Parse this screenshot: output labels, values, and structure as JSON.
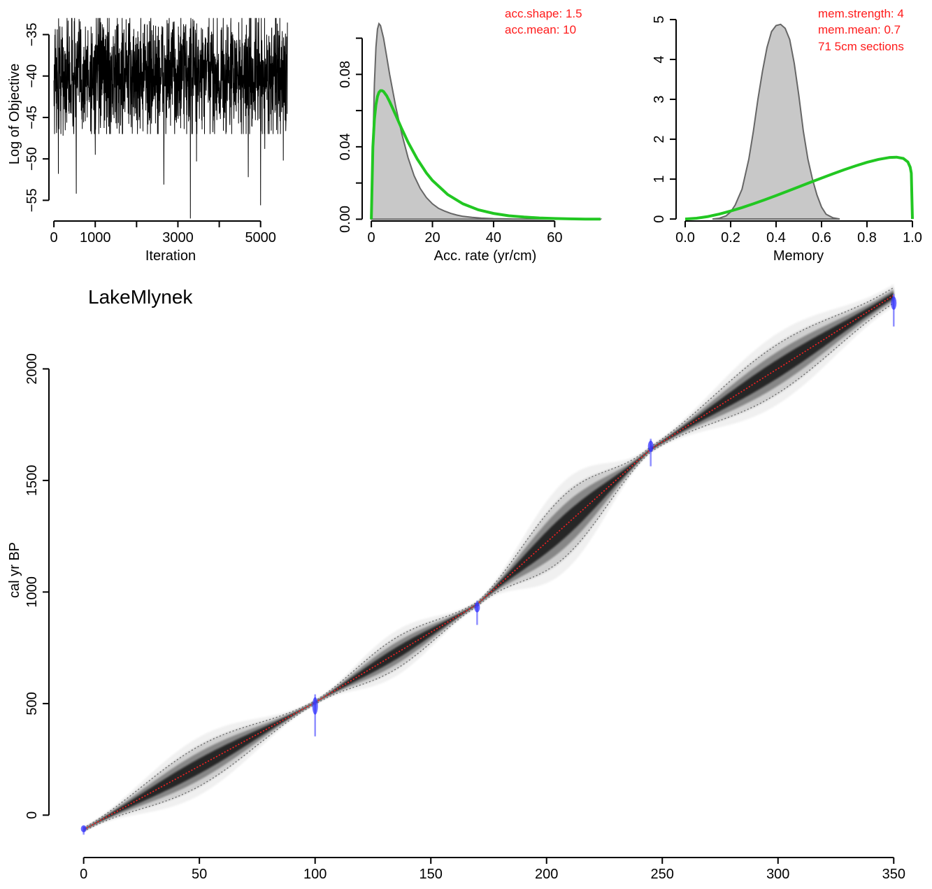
{
  "chart_data": [
    {
      "type": "line",
      "name": "mcmc-trace",
      "xlabel": "Iteration",
      "ylabel": "Log of Objective",
      "xlim": [
        -120,
        5800
      ],
      "ylim": [
        -57.5,
        -31.5
      ],
      "xticks": [
        0,
        1000,
        2000,
        3000,
        4000,
        5000
      ],
      "xtick_labels": [
        "0",
        "1000",
        "",
        "3000",
        "",
        "5000"
      ],
      "yticks": [
        -55,
        -50,
        -45,
        -40,
        -35
      ],
      "ytick_labels": [
        "−55",
        "−50",
        "−45",
        "−40",
        "−35"
      ],
      "series": [
        {
          "x_range": [
            0,
            5650
          ],
          "typical_range": [
            -47,
            -33
          ],
          "mean": -40,
          "spikes": [
            [
              110,
              -51.8
            ],
            [
              220,
              -47.2
            ],
            [
              540,
              -54.2
            ],
            [
              1000,
              -49.5
            ],
            [
              2660,
              -53.1
            ],
            [
              3300,
              -57.2
            ],
            [
              3450,
              -50.3
            ],
            [
              4700,
              -52.2
            ],
            [
              5000,
              -55.6
            ],
            [
              5100,
              -48.8
            ],
            [
              5550,
              -50.2
            ]
          ]
        }
      ]
    },
    {
      "type": "area",
      "name": "accumulation-rate",
      "xlabel": "Acc. rate (yr/cm)",
      "ylabel": "",
      "xlim": [
        -3.0,
        78.0
      ],
      "ylim": [
        -0.001,
        0.118
      ],
      "xticks": [
        0,
        20,
        40,
        60
      ],
      "xtick_labels": [
        "0",
        "20",
        "40",
        "60"
      ],
      "yticks": [
        0.0,
        0.02,
        0.04,
        0.06,
        0.08,
        0.1
      ],
      "ytick_labels": [
        "0.00",
        "",
        "0.04",
        "",
        "0.08",
        ""
      ],
      "annotations": [
        "acc.shape:  1.5",
        "acc.mean:  10"
      ],
      "series": [
        {
          "role": "posterior",
          "style": "grey-filled",
          "x": [
            0,
            0.5,
            1,
            1.5,
            2,
            2.5,
            3,
            4,
            5,
            6,
            8,
            10,
            12,
            14,
            16,
            18,
            20,
            22,
            24,
            26,
            28,
            30,
            33,
            36,
            40,
            44,
            48,
            55,
            60,
            70,
            75
          ],
          "y": [
            0.0,
            0.04,
            0.075,
            0.095,
            0.105,
            0.108,
            0.107,
            0.1,
            0.09,
            0.08,
            0.062,
            0.047,
            0.034,
            0.024,
            0.017,
            0.012,
            0.0085,
            0.006,
            0.0045,
            0.0032,
            0.0023,
            0.0016,
            0.001,
            0.0006,
            0.0003,
            0.0002,
            0.0001,
            0.0,
            0.0,
            0.0,
            0.0
          ]
        },
        {
          "role": "prior",
          "style": "green-line",
          "x": [
            0,
            0.5,
            1,
            1.5,
            2,
            2.5,
            3,
            3.5,
            4,
            5,
            6,
            7,
            8,
            10,
            12,
            15,
            18,
            20,
            25,
            30,
            35,
            40,
            45,
            50,
            55,
            60,
            65,
            70,
            75
          ],
          "y": [
            0.0,
            0.0399,
            0.0552,
            0.0633,
            0.0678,
            0.0701,
            0.071,
            0.071,
            0.0705,
            0.0682,
            0.0649,
            0.0612,
            0.0574,
            0.0498,
            0.0426,
            0.0333,
            0.0256,
            0.0214,
            0.0136,
            0.0085,
            0.0052,
            0.0032,
            0.0019,
            0.0012,
            0.0007,
            0.0004,
            0.0002,
            0.0001,
            0.0001
          ]
        }
      ]
    },
    {
      "type": "area",
      "name": "memory",
      "xlabel": "Memory",
      "ylabel": "",
      "xlim": [
        -0.04,
        1.04
      ],
      "ylim": [
        -0.05,
        5.35
      ],
      "xticks": [
        0.0,
        0.2,
        0.4,
        0.6,
        0.8,
        1.0
      ],
      "xtick_labels": [
        "0.0",
        "0.2",
        "0.4",
        "0.6",
        "0.8",
        "1.0"
      ],
      "yticks": [
        0,
        1,
        2,
        3,
        4,
        5
      ],
      "ytick_labels": [
        "0",
        "1",
        "2",
        "3",
        "4",
        "5"
      ],
      "annotations": [
        "mem.strength: 4",
        "mem.mean: 0.7",
        "71 5cm sections"
      ],
      "series": [
        {
          "role": "posterior",
          "style": "grey-filled",
          "x": [
            0.12,
            0.15,
            0.18,
            0.2,
            0.22,
            0.25,
            0.28,
            0.3,
            0.32,
            0.34,
            0.36,
            0.38,
            0.4,
            0.42,
            0.44,
            0.46,
            0.48,
            0.5,
            0.52,
            0.54,
            0.56,
            0.58,
            0.6,
            0.62,
            0.65,
            0.68
          ],
          "y": [
            0.0,
            0.02,
            0.08,
            0.18,
            0.35,
            0.75,
            1.5,
            2.2,
            3.0,
            3.7,
            4.3,
            4.7,
            4.85,
            4.88,
            4.78,
            4.5,
            3.9,
            3.1,
            2.2,
            1.5,
            1.0,
            0.6,
            0.3,
            0.12,
            0.03,
            0.0
          ]
        },
        {
          "role": "prior",
          "style": "green-line",
          "x": [
            0.0,
            0.05,
            0.1,
            0.15,
            0.2,
            0.25,
            0.3,
            0.35,
            0.4,
            0.45,
            0.5,
            0.55,
            0.6,
            0.65,
            0.7,
            0.75,
            0.8,
            0.85,
            0.9,
            0.93,
            0.96,
            0.98,
            0.99,
            0.995,
            1.0
          ],
          "y": [
            0.0,
            0.02,
            0.063,
            0.124,
            0.2,
            0.286,
            0.381,
            0.483,
            0.589,
            0.697,
            0.807,
            0.918,
            1.027,
            1.134,
            1.237,
            1.334,
            1.421,
            1.495,
            1.544,
            1.55,
            1.52,
            1.43,
            1.3,
            1.15,
            0.0
          ]
        }
      ]
    },
    {
      "type": "line",
      "name": "age-depth-model",
      "title": "LakeMlynek",
      "xlabel": "",
      "ylabel": "cal yr BP",
      "xlim": [
        -15,
        362
      ],
      "ylim": [
        -190,
        2390
      ],
      "xticks": [
        0,
        50,
        100,
        150,
        200,
        250,
        300,
        350
      ],
      "xtick_labels": [
        "0",
        "50",
        "100",
        "150",
        "200",
        "250",
        "300",
        "350"
      ],
      "yticks": [
        0,
        500,
        1000,
        1500,
        2000
      ],
      "ytick_labels": [
        "0",
        "500",
        "1000",
        "1500",
        "2000"
      ],
      "series": [
        {
          "role": "mean-model",
          "color": "#ff2020",
          "x": [
            0,
            100,
            170,
            245,
            350
          ],
          "y": [
            -65,
            505,
            945,
            1640,
            2330
          ]
        },
        {
          "role": "uncertainty-width",
          "x": [
            0,
            50,
            100,
            135,
            170,
            208,
            245,
            300,
            350
          ],
          "halfwidth": [
            8,
            90,
            8,
            70,
            10,
            140,
            12,
            110,
            35
          ]
        }
      ],
      "dates": [
        {
          "depth": 0,
          "age": -65,
          "spread": 25
        },
        {
          "depth": 100,
          "age": 470,
          "spread": 130
        },
        {
          "depth": 170,
          "age": 920,
          "spread": 75
        },
        {
          "depth": 245,
          "age": 1640,
          "spread": 85
        },
        {
          "depth": 350,
          "age": 2280,
          "spread": 100
        }
      ],
      "colors": {
        "model": "#000000",
        "mean": "#ff2020",
        "dates": "#3a3aff",
        "envelope": "#666666"
      }
    }
  ]
}
